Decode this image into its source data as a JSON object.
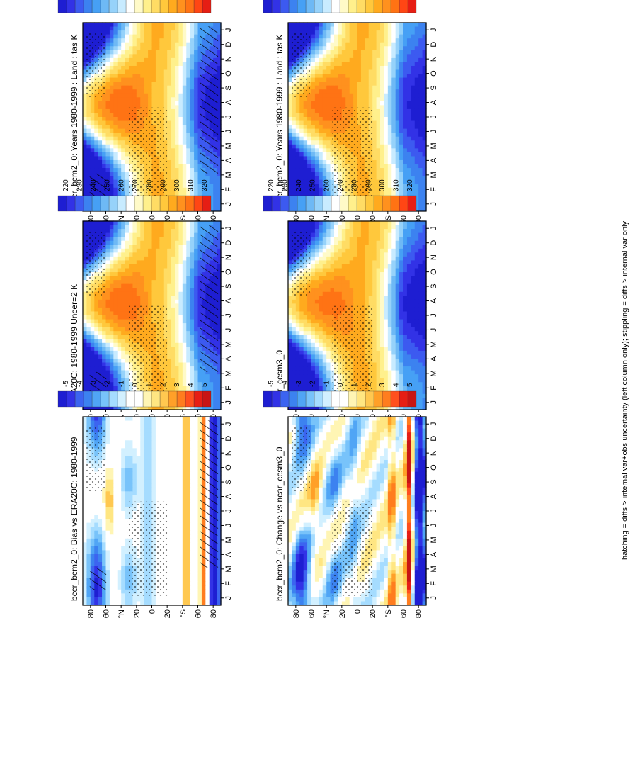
{
  "figure": {
    "footer": "hatching = diffs > internal var+obs uncertainty (left column only); stippling = diffs > internal var only"
  },
  "colors": {
    "abs_scale": [
      "#1e1ed2",
      "#3232e6",
      "#3c5af0",
      "#3c82f0",
      "#46a0f5",
      "#6eb9f5",
      "#96d2fa",
      "#c8ebff",
      "#ffffff",
      "#fffac8",
      "#fff08c",
      "#ffdc64",
      "#ffc83c",
      "#ffaa1e",
      "#ff911e",
      "#ff7314",
      "#ff4614",
      "#e61e14"
    ],
    "diff_scale": [
      "#1e1ed2",
      "#3232e6",
      "#3c64f0",
      "#3c82f0",
      "#50a5f5",
      "#78c3fa",
      "#a5dcff",
      "#d2f0ff",
      "#ffffff",
      "#ffffff",
      "#fff5b4",
      "#ffe682",
      "#ffc850",
      "#ffa028",
      "#ff7d1e",
      "#ff501e",
      "#e61e14",
      "#c81414"
    ]
  },
  "chart_data": [
    {
      "id": "model_clim",
      "type": "heatmap",
      "title": "bccr_bcm2_0: Years 1980-1999 : Land : tas K",
      "xlabel": "",
      "ylabel": "",
      "x_ticks": [
        "J",
        "F",
        "M",
        "A",
        "M",
        "J",
        "J",
        "A",
        "S",
        "O",
        "N",
        "D",
        "J"
      ],
      "y_ticks": [
        "80",
        "60",
        "°N",
        "20",
        "0",
        "20",
        "°S",
        "60",
        "80"
      ],
      "y_values": [
        80,
        60,
        40,
        20,
        0,
        -20,
        -40,
        -60,
        -80
      ],
      "colorbar": {
        "levels": [
          "320",
          "310",
          "300",
          "290",
          "280",
          "270",
          "260",
          "250",
          "240",
          "230",
          "220"
        ],
        "units": "K",
        "range": [
          215,
          325
        ]
      },
      "overlay": {
        "hatching": true,
        "stippling": true
      }
    },
    {
      "id": "model_clim_ref",
      "type": "heatmap",
      "title": "ERA20C: 1980-1999 Uncer=2 K",
      "xlabel": "",
      "ylabel": "",
      "x_ticks": [
        "J",
        "F",
        "M",
        "A",
        "M",
        "J",
        "J",
        "A",
        "S",
        "O",
        "N",
        "D",
        "J"
      ],
      "y_ticks": [
        "80",
        "60",
        "°N",
        "20",
        "0",
        "20",
        "°S",
        "60",
        "80"
      ],
      "y_values": [
        80,
        60,
        40,
        20,
        0,
        -20,
        -40,
        -60,
        -80
      ],
      "colorbar": {
        "levels": [
          "320",
          "310",
          "300",
          "290",
          "280",
          "270",
          "260",
          "250",
          "240",
          "230",
          "220"
        ],
        "units": "K",
        "range": [
          215,
          325
        ]
      },
      "overlay": {
        "hatching": true,
        "stippling": true
      }
    },
    {
      "id": "bias",
      "type": "heatmap",
      "title": "bccr_bcm2_0: Bias vs ERA20C: 1980-1999",
      "xlabel": "",
      "ylabel": "",
      "x_ticks": [
        "J",
        "F",
        "M",
        "A",
        "M",
        "J",
        "J",
        "A",
        "S",
        "O",
        "N",
        "D",
        "J"
      ],
      "y_ticks": [
        "80",
        "60",
        "°N",
        "20",
        "0",
        "20",
        "°S",
        "60",
        "80"
      ],
      "y_values": [
        80,
        60,
        40,
        20,
        0,
        -20,
        -40,
        -60,
        -80
      ],
      "colorbar": {
        "levels": [
          "5",
          "4",
          "3",
          "2",
          "1",
          "0",
          "-1",
          "-2",
          "-3",
          "-4",
          "-5"
        ],
        "units": "K",
        "range": [
          -5.5,
          5.5
        ]
      },
      "overlay": {
        "hatching": true,
        "stippling": true
      }
    },
    {
      "id": "model_clim_right",
      "type": "heatmap",
      "title": "bccr_bcm2_0: Years 1980-1999 : Land : tas K",
      "xlabel": "",
      "ylabel": "",
      "x_ticks": [
        "J",
        "F",
        "M",
        "A",
        "M",
        "J",
        "J",
        "A",
        "S",
        "O",
        "N",
        "D",
        "J"
      ],
      "y_ticks": [
        "80",
        "60",
        "°N",
        "20",
        "0",
        "20",
        "°S",
        "60",
        "80"
      ],
      "y_values": [
        80,
        60,
        40,
        20,
        0,
        -20,
        -40,
        -60,
        -80
      ],
      "colorbar": {
        "levels": [
          "320",
          "310",
          "300",
          "290",
          "280",
          "270",
          "260",
          "250",
          "240",
          "230",
          "220"
        ],
        "units": "K",
        "range": [
          215,
          325
        ]
      },
      "overlay": {
        "hatching": false,
        "stippling": true
      }
    },
    {
      "id": "other_model",
      "type": "heatmap",
      "title": "ncar_ccsm3_0",
      "xlabel": "",
      "ylabel": "",
      "x_ticks": [
        "J",
        "F",
        "M",
        "A",
        "M",
        "J",
        "J",
        "A",
        "S",
        "O",
        "N",
        "D",
        "J"
      ],
      "y_ticks": [
        "80",
        "60",
        "°N",
        "20",
        "0",
        "20",
        "°S",
        "60",
        "80"
      ],
      "y_values": [
        80,
        60,
        40,
        20,
        0,
        -20,
        -40,
        -60,
        -80
      ],
      "colorbar": {
        "levels": [
          "320",
          "310",
          "300",
          "290",
          "280",
          "270",
          "260",
          "250",
          "240",
          "230",
          "220"
        ],
        "units": "K",
        "range": [
          215,
          325
        ]
      },
      "overlay": {
        "hatching": false,
        "stippling": true
      }
    },
    {
      "id": "change",
      "type": "heatmap",
      "title": "bccr_bcm2_0: Change vs ncar_ccsm3_0",
      "xlabel": "",
      "ylabel": "",
      "x_ticks": [
        "J",
        "F",
        "M",
        "A",
        "M",
        "J",
        "J",
        "A",
        "S",
        "O",
        "N",
        "D",
        "J"
      ],
      "y_ticks": [
        "80",
        "60",
        "°N",
        "20",
        "0",
        "20",
        "°S",
        "60",
        "80"
      ],
      "y_values": [
        80,
        60,
        40,
        20,
        0,
        -20,
        -40,
        -60,
        -80
      ],
      "colorbar": {
        "levels": [
          "5",
          "4",
          "3",
          "2",
          "1",
          "0",
          "-1",
          "-2",
          "-3",
          "-4",
          "-5"
        ],
        "units": "K",
        "range": [
          -5.5,
          5.5
        ]
      },
      "overlay": {
        "hatching": false,
        "stippling": true
      }
    }
  ]
}
